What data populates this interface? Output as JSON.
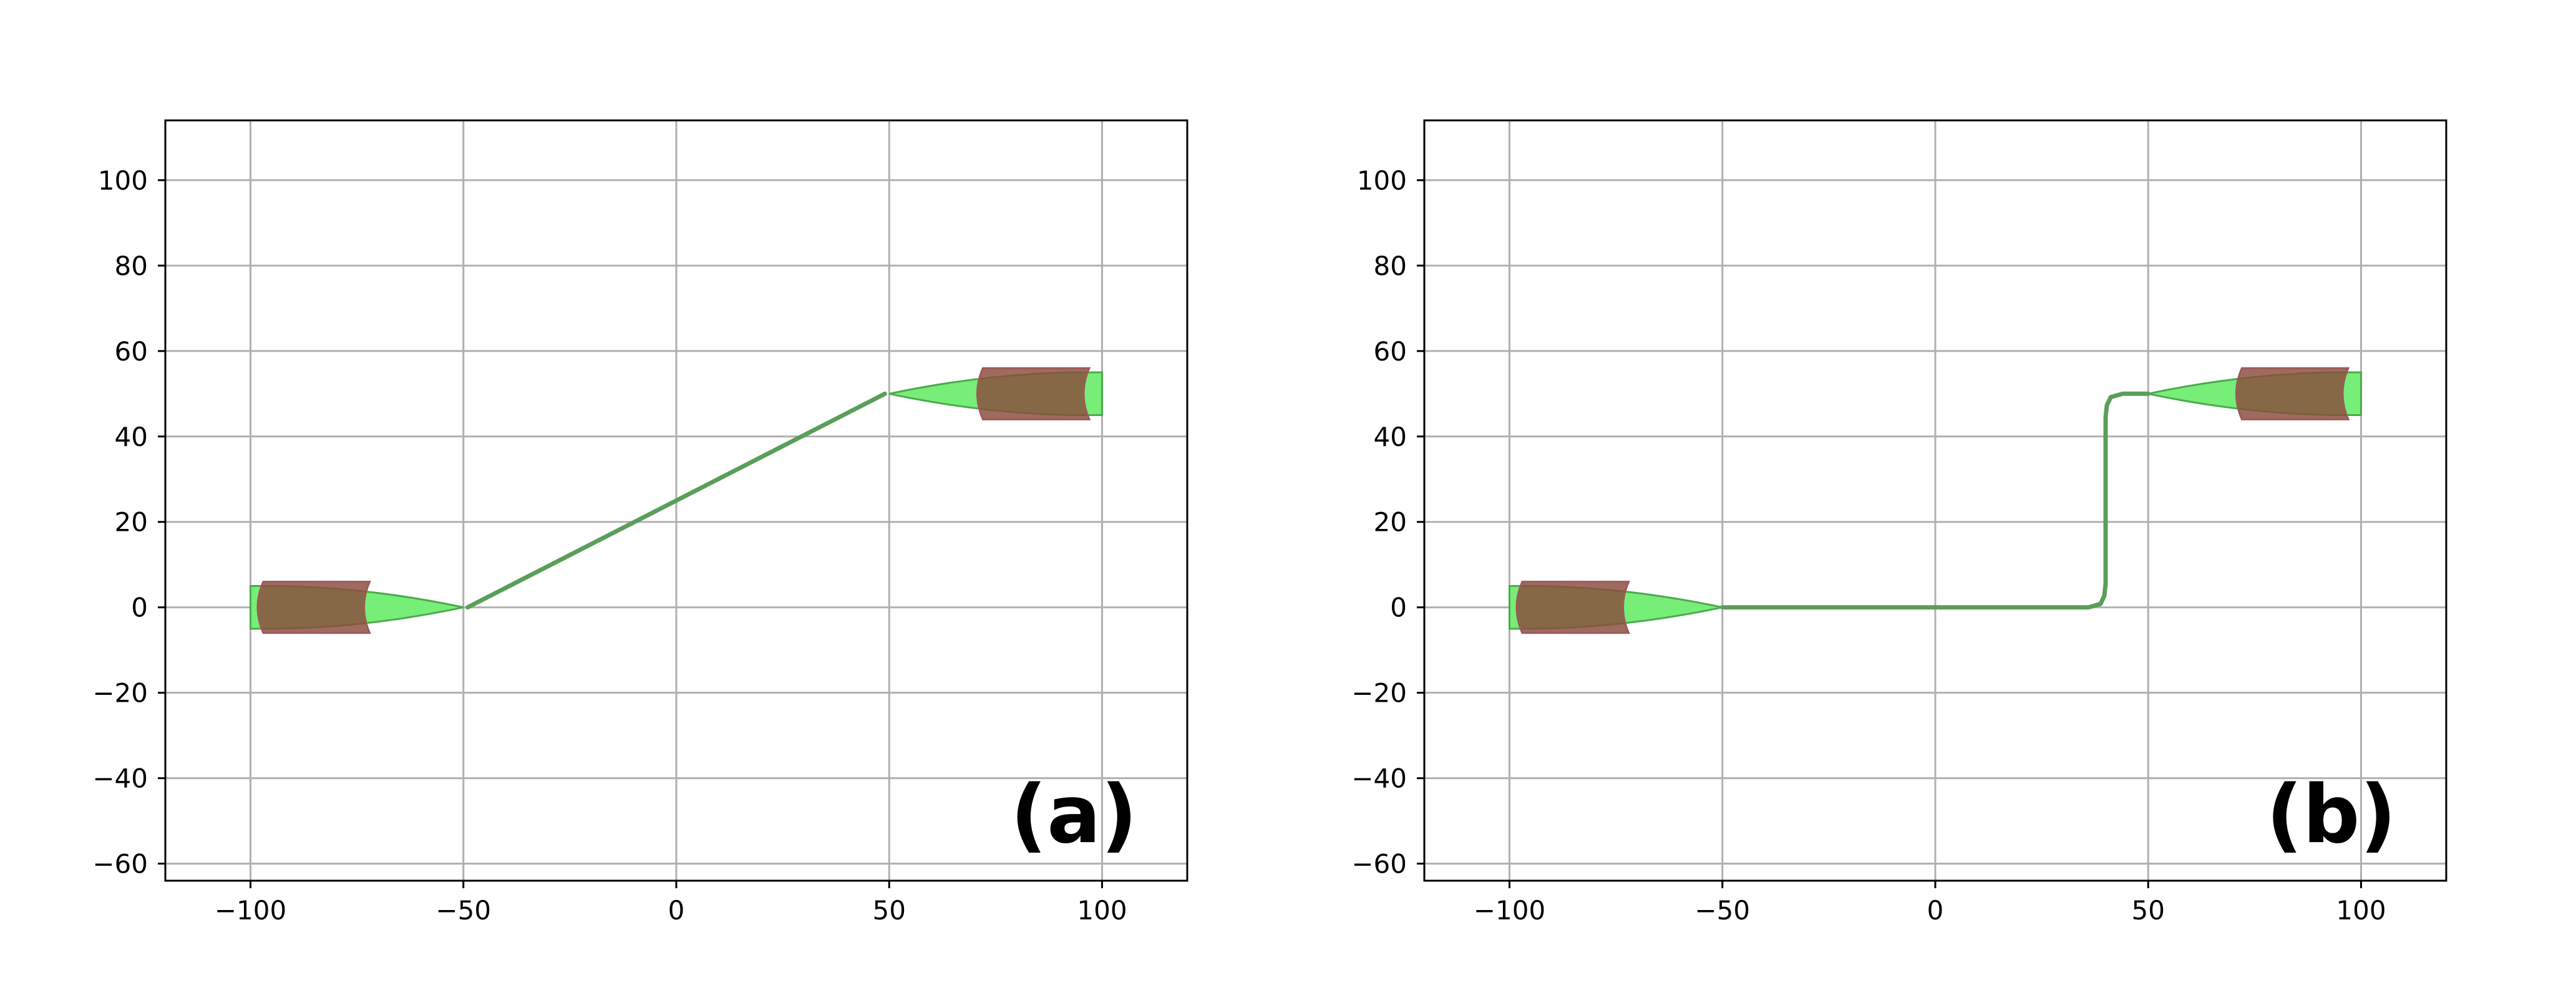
{
  "chart_data": [
    {
      "type": "line",
      "panel_label": "(a)",
      "xlim": [
        -120,
        120
      ],
      "ylim": [
        -64,
        114
      ],
      "xticks": [
        -100,
        -50,
        0,
        50,
        100
      ],
      "xtick_labels": [
        "−100",
        "−50",
        "0",
        "50",
        "100"
      ],
      "yticks": [
        -60,
        -40,
        -20,
        0,
        20,
        40,
        60,
        80,
        100
      ],
      "ytick_labels": [
        "−60",
        "−40",
        "−20",
        "0",
        "20",
        "40",
        "60",
        "80",
        "100"
      ],
      "grid": true,
      "path": {
        "color": "#5a9e5a",
        "x": [
          -49,
          49
        ],
        "y": [
          0,
          50
        ]
      },
      "tapers": [
        {
          "color": "#77ee77",
          "wide_end": [
            -100,
            0
          ],
          "tip": [
            -50,
            0
          ],
          "half_width": 5,
          "pad_x_range": [
            -97,
            -72
          ],
          "pad_half_width": 6
        },
        {
          "color": "#77ee77",
          "wide_end": [
            100,
            50
          ],
          "tip": [
            50,
            50
          ],
          "half_width": 5,
          "pad_x_range": [
            72,
            97
          ],
          "pad_half_width": 6
        }
      ],
      "pad_color": "#8b4a3c"
    },
    {
      "type": "line",
      "panel_label": "(b)",
      "xlim": [
        -120,
        120
      ],
      "ylim": [
        -64,
        114
      ],
      "xticks": [
        -100,
        -50,
        0,
        50,
        100
      ],
      "xtick_labels": [
        "−100",
        "−50",
        "0",
        "50",
        "100"
      ],
      "yticks": [
        -60,
        -40,
        -20,
        0,
        20,
        40,
        60,
        80,
        100
      ],
      "ytick_labels": [
        "−60",
        "−40",
        "−20",
        "0",
        "20",
        "40",
        "60",
        "80",
        "100"
      ],
      "grid": true,
      "path": {
        "color": "#5a9e5a",
        "x": [
          -50,
          36,
          38.8,
          39.7,
          40,
          40,
          40.3,
          41.2,
          44,
          50
        ],
        "y": [
          0,
          0,
          0.8,
          2.7,
          5.5,
          44.5,
          47.3,
          49.2,
          50,
          50
        ]
      },
      "tapers": [
        {
          "color": "#77ee77",
          "wide_end": [
            -100,
            0
          ],
          "tip": [
            -50,
            0
          ],
          "half_width": 5,
          "pad_x_range": [
            -97,
            -72
          ],
          "pad_half_width": 6
        },
        {
          "color": "#77ee77",
          "wide_end": [
            100,
            50
          ],
          "tip": [
            50,
            50
          ],
          "half_width": 5,
          "pad_x_range": [
            72,
            97
          ],
          "pad_half_width": 6
        }
      ],
      "pad_color": "#8b4a3c"
    }
  ]
}
